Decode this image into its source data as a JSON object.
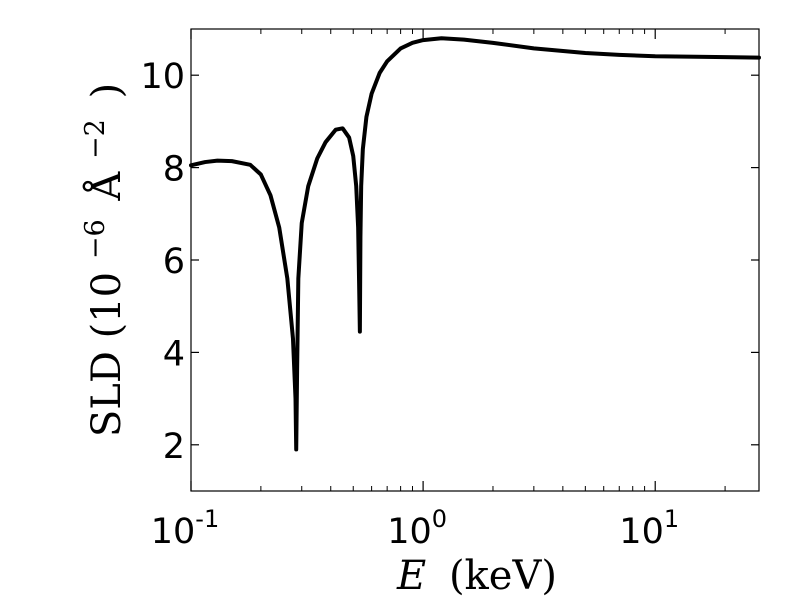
{
  "chart_data": {
    "type": "line",
    "title": "",
    "xscale": "log",
    "xlim": [
      0.1,
      28
    ],
    "ylim": [
      1,
      11
    ],
    "grid": false,
    "xlabel": {
      "var": "E",
      "unit": "(keV)"
    },
    "ylabel": {
      "prefix": "SLD (10",
      "exp": "−6",
      "unit": "Å",
      "unit_exp": "−2",
      "suffix": ")"
    },
    "xticks": [
      {
        "value": 0.1,
        "base": "10",
        "exp": "-1"
      },
      {
        "value": 1,
        "base": "10",
        "exp": "0"
      },
      {
        "value": 10,
        "base": "10",
        "exp": "1"
      }
    ],
    "yticks": [
      {
        "value": 2,
        "label": "2"
      },
      {
        "value": 4,
        "label": "4"
      },
      {
        "value": 6,
        "label": "6"
      },
      {
        "value": 8,
        "label": "8"
      },
      {
        "value": 10,
        "label": "10"
      }
    ],
    "series": [
      {
        "color": "#000000",
        "x": [
          0.1,
          0.115,
          0.13,
          0.15,
          0.18,
          0.2,
          0.22,
          0.24,
          0.26,
          0.275,
          0.282,
          0.284,
          0.2865,
          0.29,
          0.3,
          0.32,
          0.35,
          0.38,
          0.42,
          0.45,
          0.48,
          0.5,
          0.515,
          0.525,
          0.53,
          0.534,
          0.537,
          0.541,
          0.55,
          0.57,
          0.6,
          0.65,
          0.7,
          0.8,
          0.9,
          1.0,
          1.2,
          1.5,
          2.0,
          3.0,
          5.0,
          7.0,
          10.0,
          15.0,
          20.0,
          28.0
        ],
        "y": [
          8.05,
          8.12,
          8.15,
          8.14,
          8.06,
          7.85,
          7.4,
          6.7,
          5.6,
          4.3,
          3.0,
          1.9,
          3.6,
          5.6,
          6.8,
          7.6,
          8.2,
          8.55,
          8.82,
          8.85,
          8.65,
          8.25,
          7.6,
          6.7,
          5.5,
          4.45,
          6.5,
          7.6,
          8.4,
          9.1,
          9.6,
          10.05,
          10.3,
          10.58,
          10.7,
          10.76,
          10.8,
          10.77,
          10.7,
          10.58,
          10.48,
          10.44,
          10.41,
          10.4,
          10.39,
          10.38
        ]
      }
    ]
  }
}
